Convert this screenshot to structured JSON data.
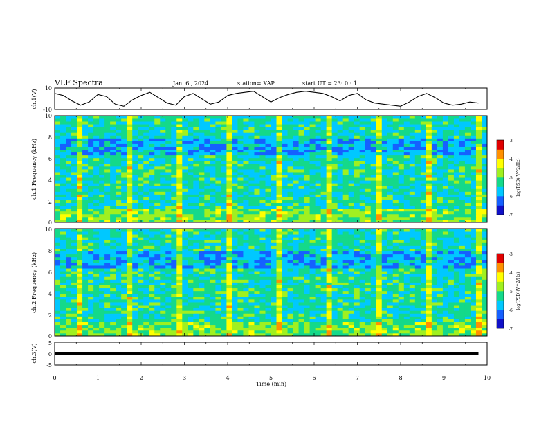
{
  "header": {
    "title": "VLF Spectra",
    "date": "Jan. 6 , 2024",
    "station": "station= KAP",
    "start": "start  UT =   23: 0  : 1"
  },
  "chart_data": [
    {
      "type": "line",
      "panel": "ch1-waveform",
      "ylabel": "ch.1(V)",
      "ylim": [
        -10,
        10
      ],
      "y_tick_labels": [
        "10",
        "-10"
      ],
      "xlim": [
        0,
        10
      ],
      "x": [
        0.0,
        0.2,
        0.4,
        0.6,
        0.8,
        1.0,
        1.2,
        1.4,
        1.6,
        1.8,
        2.0,
        2.2,
        2.4,
        2.6,
        2.8,
        3.0,
        3.2,
        3.4,
        3.6,
        3.8,
        4.0,
        4.2,
        4.4,
        4.6,
        4.8,
        5.0,
        5.2,
        5.4,
        5.6,
        5.8,
        6.0,
        6.2,
        6.4,
        6.6,
        6.8,
        7.0,
        7.2,
        7.4,
        7.6,
        7.8,
        8.0,
        8.2,
        8.4,
        8.6,
        8.8,
        9.0,
        9.2,
        9.4,
        9.6,
        9.8
      ],
      "values": [
        5,
        3,
        -2,
        -6,
        -3,
        4,
        2,
        -5,
        -7,
        -1,
        3,
        6,
        1,
        -4,
        -6,
        2,
        5,
        0,
        -5,
        -3,
        3,
        5,
        6,
        7,
        2,
        -3,
        1,
        4,
        6,
        7,
        6,
        5,
        2,
        -2,
        3,
        5,
        -1,
        -4,
        -5,
        -6,
        -7,
        -3,
        2,
        5,
        1,
        -4,
        -6,
        -5,
        -3,
        -4
      ]
    },
    {
      "type": "heatmap",
      "panel": "ch1-spectrogram",
      "ylabel": "ch.1 Frequency (kHz)",
      "ylim": [
        0,
        10
      ],
      "xlim": [
        0,
        10
      ],
      "y_tick_labels": [
        "0",
        "2",
        "4",
        "6",
        "8",
        "10"
      ],
      "colorbar": {
        "label": "log(PSD)(V^2/Hz)",
        "range": [
          -7,
          -3
        ],
        "tick_labels": [
          "-3",
          "-4",
          "-5",
          "-6",
          "-7"
        ]
      }
    },
    {
      "type": "heatmap",
      "panel": "ch2-spectrogram",
      "ylabel": "ch.2 Frequency (kHz)",
      "ylim": [
        0,
        10
      ],
      "xlim": [
        0,
        10
      ],
      "y_tick_labels": [
        "0",
        "2",
        "4",
        "6",
        "8",
        "10"
      ],
      "colorbar": {
        "label": "log(PSD)(V^2/Hz)",
        "range": [
          -7,
          -3
        ],
        "tick_labels": [
          "-3",
          "-4",
          "-5",
          "-6",
          "-7"
        ]
      }
    },
    {
      "type": "line",
      "panel": "ch3-waveform",
      "ylabel": "ch.3(V)",
      "ylim": [
        -5,
        5
      ],
      "y_tick_labels": [
        "5",
        "0",
        "-5"
      ],
      "xlim": [
        0,
        10
      ],
      "x": [
        0,
        9.8
      ],
      "values": [
        0,
        0
      ]
    }
  ],
  "xaxis": {
    "label": "Time  (min)",
    "tick_labels": [
      "0",
      "1",
      "2",
      "3",
      "4",
      "5",
      "6",
      "7",
      "8",
      "9",
      "10"
    ]
  },
  "colors": {
    "colormap": [
      "#1010c8",
      "#1560ff",
      "#00c8ff",
      "#14d98a",
      "#a0f020",
      "#ffff00",
      "#ff9000",
      "#e00000"
    ],
    "line": "#000000"
  }
}
